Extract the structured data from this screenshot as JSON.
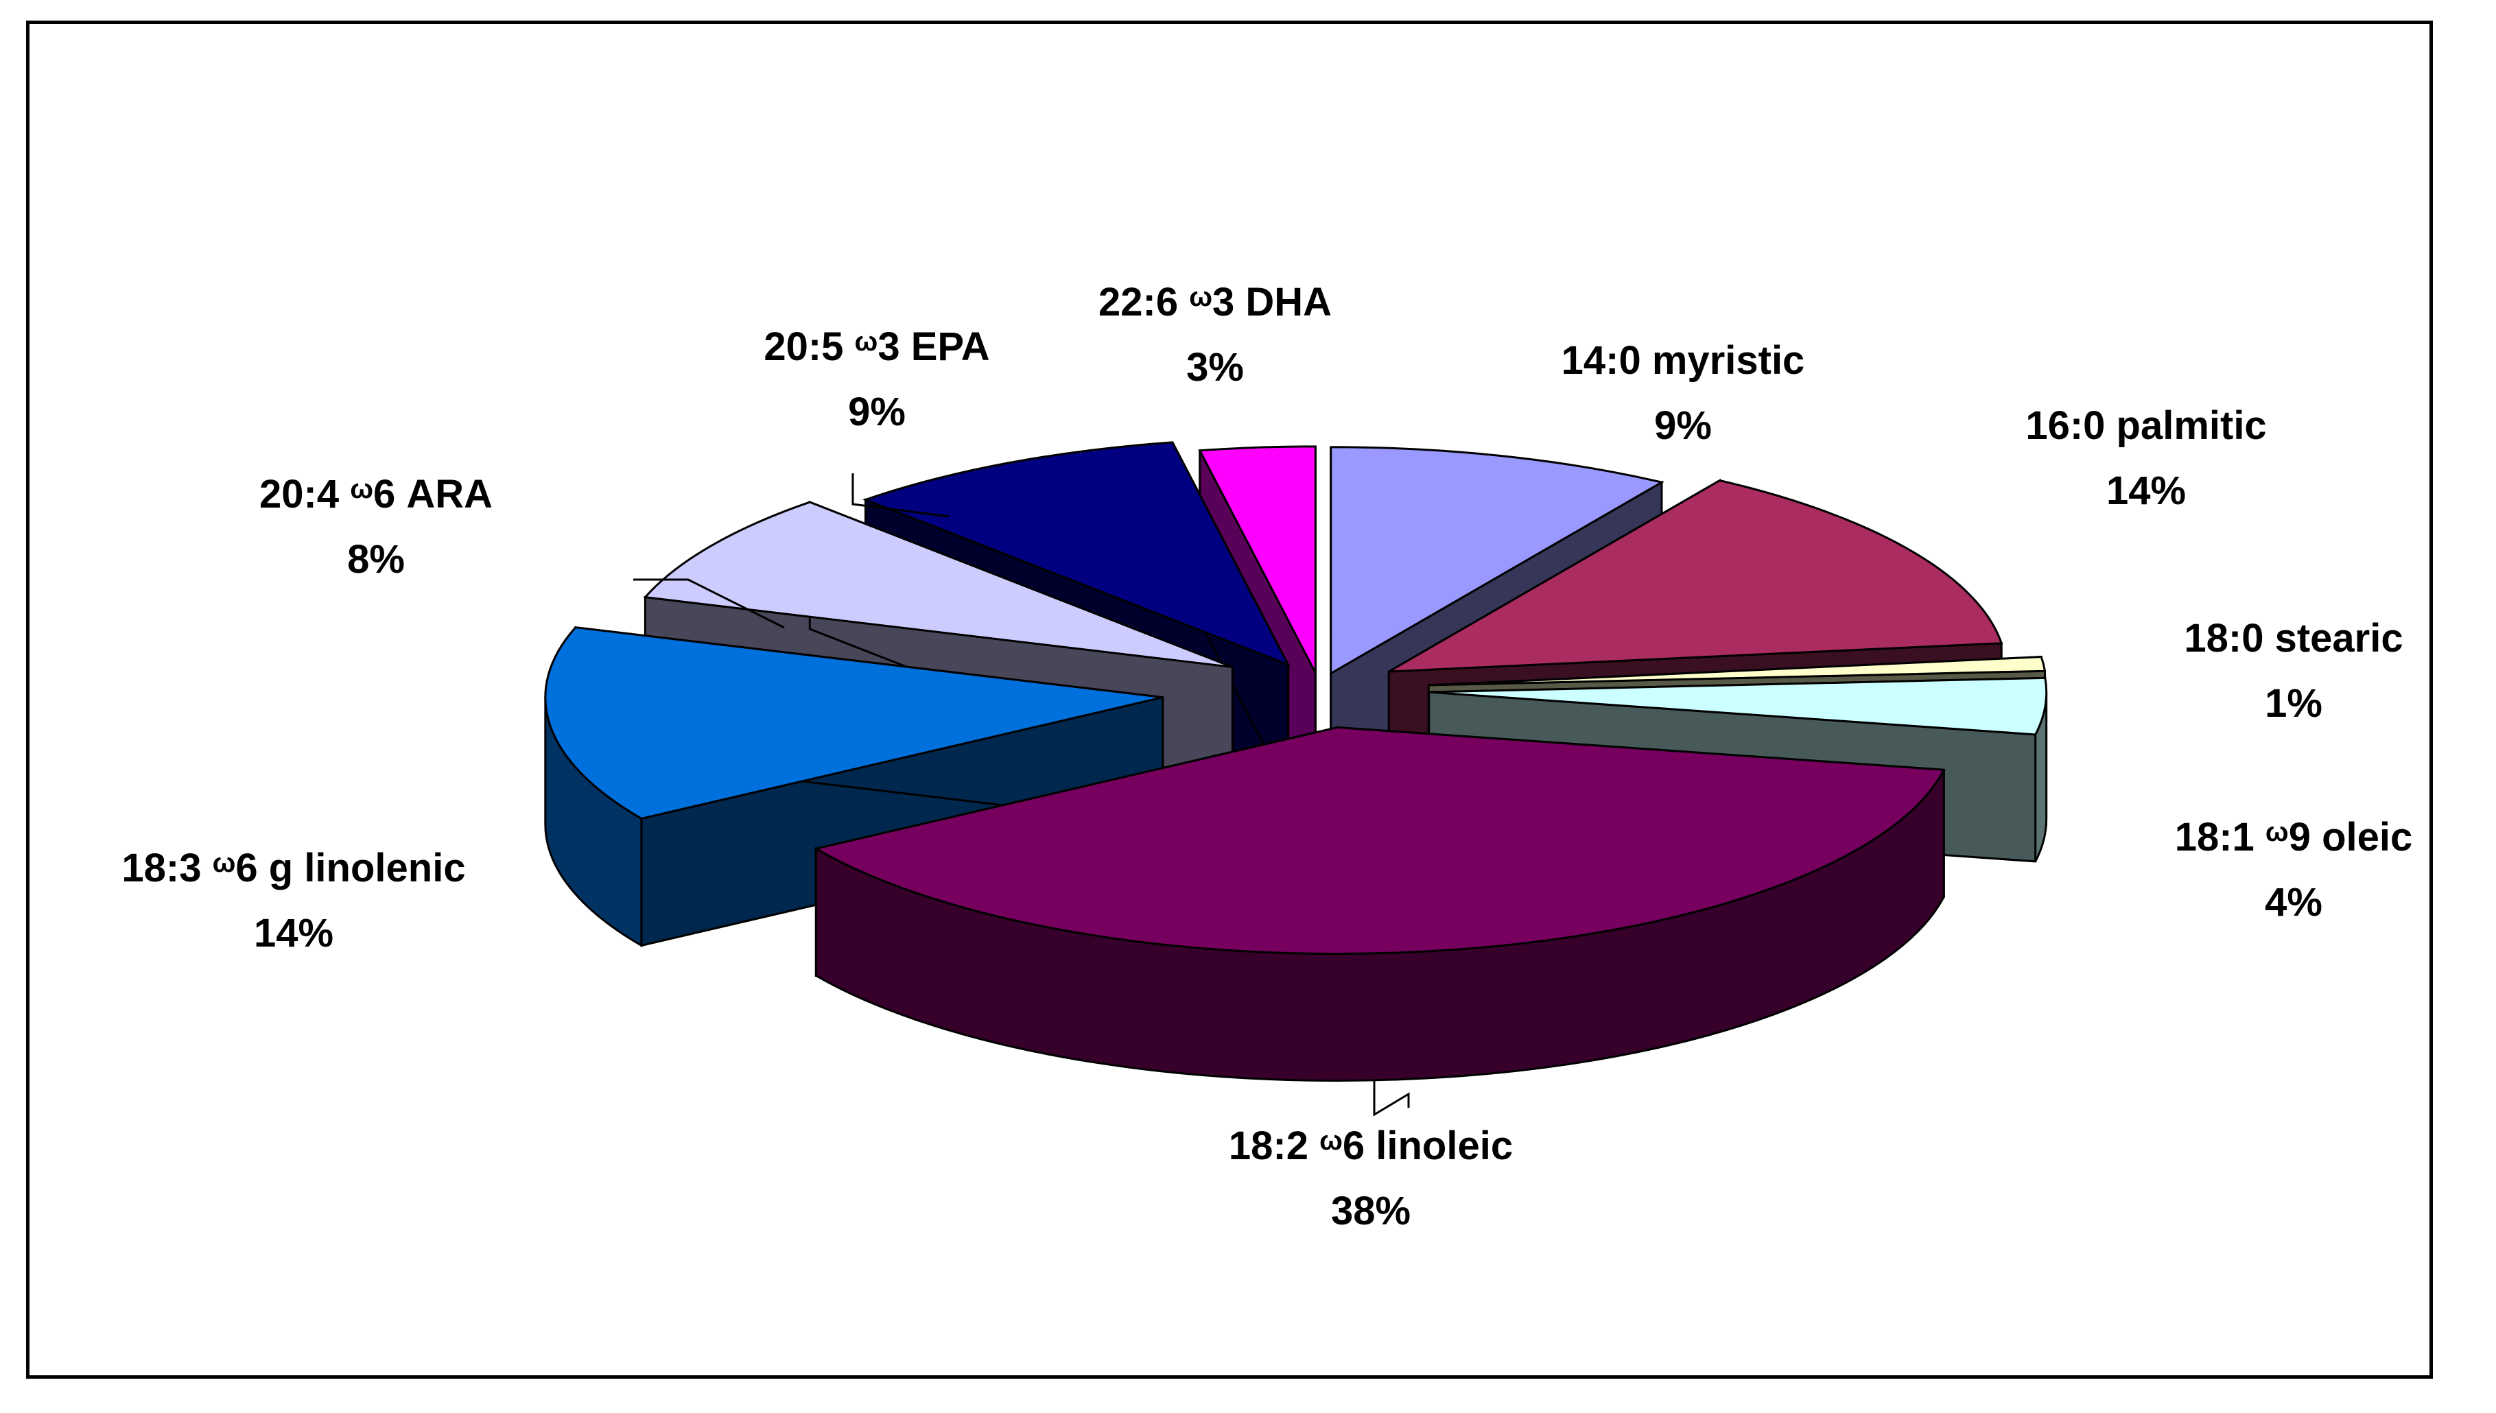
{
  "chart_data": {
    "type": "pie",
    "style": "3d-exploded",
    "slices": [
      {
        "name": "14:0 myristic",
        "prefix": "14:0 ",
        "omega": "",
        "suffix": "myristic",
        "value": 9,
        "label_pct": "9%",
        "color": "#9999FF"
      },
      {
        "name": "16:0 palmitic",
        "prefix": "16:0 ",
        "omega": "",
        "suffix": "palmitic",
        "value": 14,
        "label_pct": "14%",
        "color": "#AA2C60"
      },
      {
        "name": "18:0 stearic",
        "prefix": "18:0 ",
        "omega": "",
        "suffix": "stearic",
        "value": 1,
        "label_pct": "1%",
        "color": "#FFFFCC"
      },
      {
        "name": "18:1 ω9 oleic",
        "prefix": "18:1 ",
        "omega": "ω",
        "suffix": "9 oleic",
        "value": 4,
        "label_pct": "4%",
        "color": "#CCFFFF"
      },
      {
        "name": "18:2 ω6 linoleic",
        "prefix": "18:2 ",
        "omega": "ω",
        "suffix": "6 linoleic",
        "value": 38,
        "label_pct": "38%",
        "color": "#77005F"
      },
      {
        "name": "18:3 ω6 g linolenic",
        "prefix": "18:3 ",
        "omega": "ω",
        "suffix": "6 g linolenic",
        "value": 14,
        "label_pct": "14%",
        "color": "#0070DD"
      },
      {
        "name": "20:4 ω6 ARA",
        "prefix": "20:4 ",
        "omega": "ω",
        "suffix": "6 ARA",
        "value": 8,
        "label_pct": "8%",
        "color": "#CCCCFF"
      },
      {
        "name": "20:5 ω3 EPA",
        "prefix": "20:5 ",
        "omega": "ω",
        "suffix": "3 EPA",
        "value": 9,
        "label_pct": "9%",
        "color": "#000080"
      },
      {
        "name": "22:6 ω3 DHA",
        "prefix": "22:6 ",
        "omega": "ω",
        "suffix": "3 DHA",
        "value": 3,
        "label_pct": "3%",
        "color": "#FF00FF"
      }
    ]
  }
}
